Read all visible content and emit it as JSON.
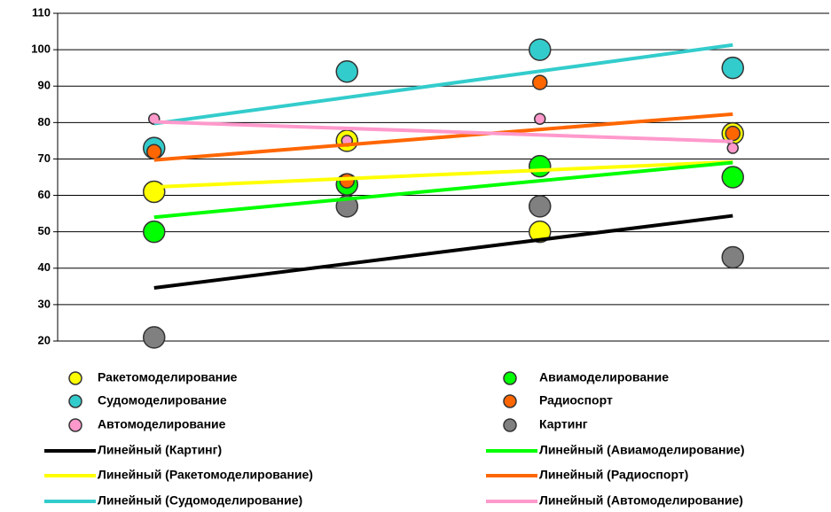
{
  "chart_data": {
    "type": "scatter",
    "categories": [
      null,
      null,
      null,
      null
    ],
    "ylim": [
      20,
      110
    ],
    "yticks": [
      20,
      30,
      40,
      50,
      60,
      70,
      80,
      90,
      100,
      110
    ],
    "grid": true,
    "series": [
      {
        "name": "Ракетомоделирование",
        "color": "#ffff00",
        "marker_size": "large",
        "values": [
          61,
          75,
          50,
          77
        ],
        "trendline": {
          "name": "Линейный (Ракетомоделирование)",
          "color": "#ffff00"
        }
      },
      {
        "name": "Авиамоделирование",
        "color": "#00ff00",
        "marker_size": "large",
        "values": [
          50,
          63,
          68,
          65
        ],
        "trendline": {
          "name": "Линейный (Авиамоделирование)",
          "color": "#00ff00"
        }
      },
      {
        "name": "Судомоделирование",
        "color": "#33cccc",
        "marker_size": "large",
        "values": [
          73,
          94,
          100,
          95
        ],
        "trendline": {
          "name": "Линейный (Судомоделирование)",
          "color": "#33cccc"
        }
      },
      {
        "name": "Радиоспорт",
        "color": "#ff6600",
        "marker_size": "medium",
        "values": [
          72,
          64,
          91,
          77
        ],
        "trendline": {
          "name": "Линейный (Радиоспорт)",
          "color": "#ff6600"
        }
      },
      {
        "name": "Автомоделирование",
        "color": "#ff99cc",
        "marker_size": "small",
        "values": [
          81,
          75,
          81,
          73
        ],
        "trendline": {
          "name": "Линейный (Автомоделирование)",
          "color": "#ff99cc"
        }
      },
      {
        "name": "Картинг",
        "color": "#808080",
        "marker_size": "large",
        "values": [
          21,
          57,
          57,
          43
        ],
        "trendline": {
          "name": "Линейный (Картинг)",
          "color": "#000000"
        }
      }
    ]
  }
}
